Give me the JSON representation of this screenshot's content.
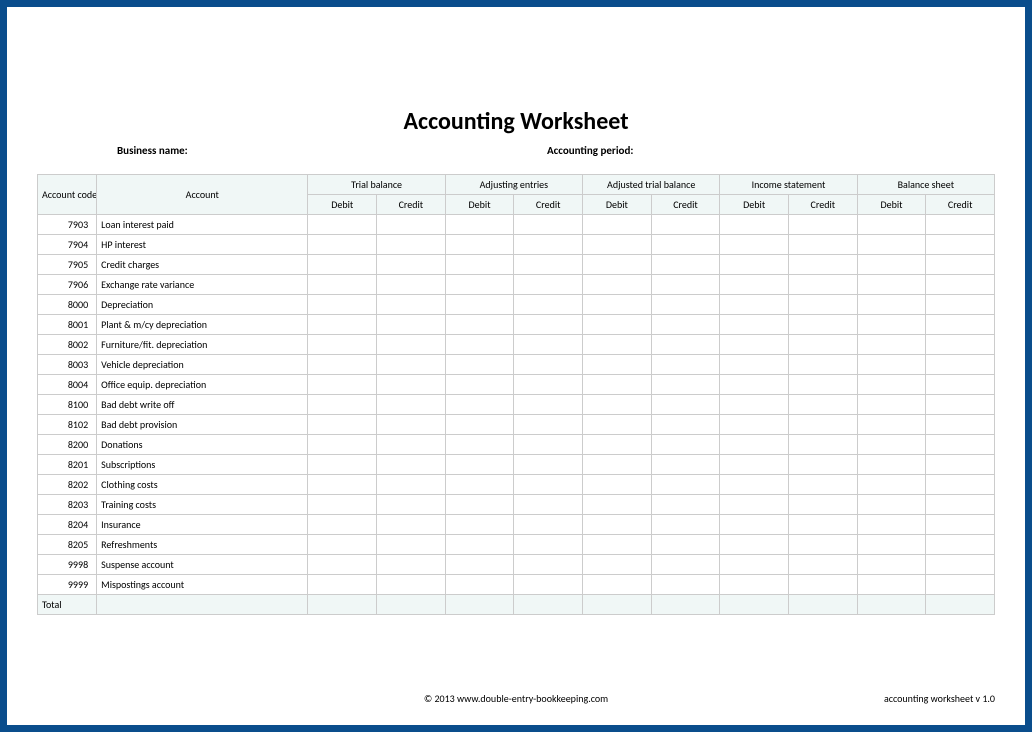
{
  "title": "Accounting Worksheet",
  "labels": {
    "business_name": "Business name:",
    "accounting_period": "Accounting period:"
  },
  "columns": {
    "account_code": "Account code",
    "account": "Account",
    "groups": [
      "Trial balance",
      "Adjusting entries",
      "Adjusted trial balance",
      "Income statement",
      "Balance sheet"
    ],
    "debit": "Debit",
    "credit": "Credit"
  },
  "rows": [
    {
      "code": "7903",
      "account": "Loan interest paid"
    },
    {
      "code": "7904",
      "account": "HP interest"
    },
    {
      "code": "7905",
      "account": "Credit charges"
    },
    {
      "code": "7906",
      "account": "Exchange rate variance"
    },
    {
      "code": "8000",
      "account": "Depreciation"
    },
    {
      "code": "8001",
      "account": "Plant & m/cy depreciation"
    },
    {
      "code": "8002",
      "account": "Furniture/fit. depreciation"
    },
    {
      "code": "8003",
      "account": "Vehicle depreciation"
    },
    {
      "code": "8004",
      "account": "Office equip. depreciation"
    },
    {
      "code": "8100",
      "account": "Bad debt write off"
    },
    {
      "code": "8102",
      "account": "Bad debt provision"
    },
    {
      "code": "8200",
      "account": "Donations"
    },
    {
      "code": "8201",
      "account": "Subscriptions"
    },
    {
      "code": "8202",
      "account": "Clothing costs"
    },
    {
      "code": "8203",
      "account": "Training costs"
    },
    {
      "code": "8204",
      "account": "Insurance"
    },
    {
      "code": "8205",
      "account": "Refreshments"
    },
    {
      "code": "9998",
      "account": "Suspense account"
    },
    {
      "code": "9999",
      "account": "Mispostings account"
    }
  ],
  "total_label": "Total",
  "footer": {
    "copyright": "© 2013 www.double-entry-bookkeeping.com",
    "version": "accounting worksheet v 1.0"
  },
  "style": {
    "border_color": "#0a4d8c",
    "header_bg": "#f0f7f6",
    "grid_color": "#cccccc",
    "title_fontsize": 24,
    "cell_fontsize": 10,
    "label_fontsize": 11,
    "background": "#ffffff"
  }
}
